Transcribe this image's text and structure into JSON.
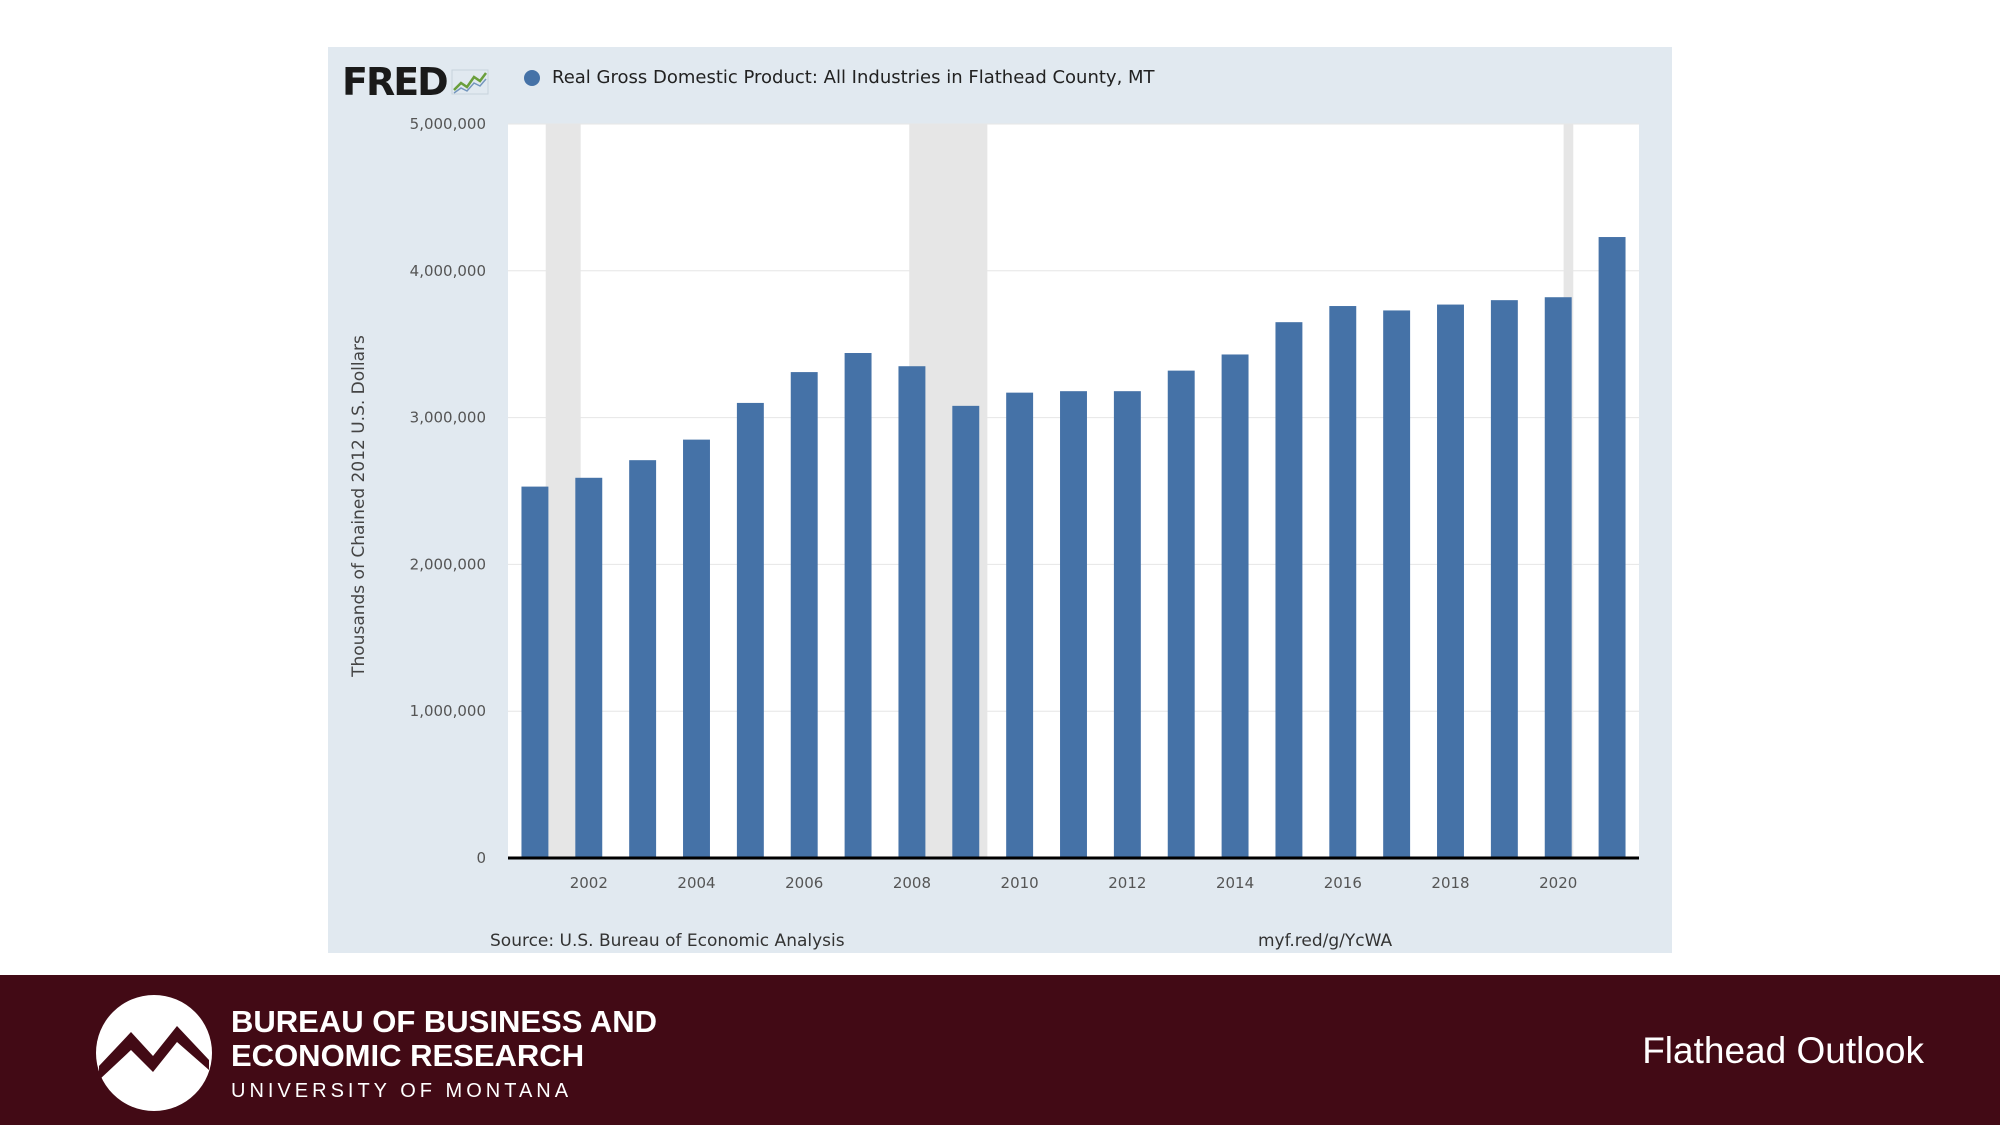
{
  "brand": {
    "logo_text": "FRED",
    "logo_icon": "line-chart-icon"
  },
  "chart_data": {
    "type": "bar",
    "title": "Real Gross Domestic Product: All Industries in Flathead County, MT",
    "ylabel": "Thousands of Chained 2012 U.S. Dollars",
    "xlabel": "",
    "x": [
      2001,
      2002,
      2003,
      2004,
      2005,
      2006,
      2007,
      2008,
      2009,
      2010,
      2011,
      2012,
      2013,
      2014,
      2015,
      2016,
      2017,
      2018,
      2019,
      2020,
      2021
    ],
    "series": [
      {
        "name": "Real Gross Domestic Product: All Industries in Flathead County, MT",
        "color": "#4572a7",
        "values": [
          2530000,
          2590000,
          2710000,
          2850000,
          3100000,
          3310000,
          3440000,
          3350000,
          3080000,
          3170000,
          3180000,
          3180000,
          3320000,
          3430000,
          3650000,
          3760000,
          3730000,
          3770000,
          3800000,
          3820000,
          4230000
        ]
      }
    ],
    "ylim": [
      0,
      5000000
    ],
    "yticks": [
      0,
      1000000,
      2000000,
      3000000,
      4000000,
      5000000
    ],
    "ytick_labels": [
      "0",
      "1,000,000",
      "2,000,000",
      "3,000,000",
      "4,000,000",
      "5,000,000"
    ],
    "xtick_labels": [
      "2002",
      "2004",
      "2006",
      "2008",
      "2010",
      "2012",
      "2014",
      "2016",
      "2018",
      "2020"
    ],
    "recessions": [
      [
        2001.2,
        2001.85
      ],
      [
        2007.95,
        2009.4
      ],
      [
        2020.1,
        2020.28
      ]
    ],
    "grid": true,
    "legend": "top-left",
    "colors": {
      "bar": "#4572a7",
      "panel": "#e1e9f0",
      "plot_bg": "#ffffff",
      "recession": "#e6e6e6",
      "grid": "#e6e6e6"
    }
  },
  "source": "Source: U.S. Bureau of Economic Analysis",
  "short_url": "myf.red/g/YcWA",
  "footer": {
    "org_name_line1": "BUREAU OF BUSINESS AND",
    "org_name_line2": "ECONOMIC RESEARCH",
    "org_sub": "UNIVERSITY OF MONTANA",
    "logo_icon": "mountain-logo-icon",
    "slide_title": "Flathead Outlook",
    "band_color": "#420a15"
  }
}
